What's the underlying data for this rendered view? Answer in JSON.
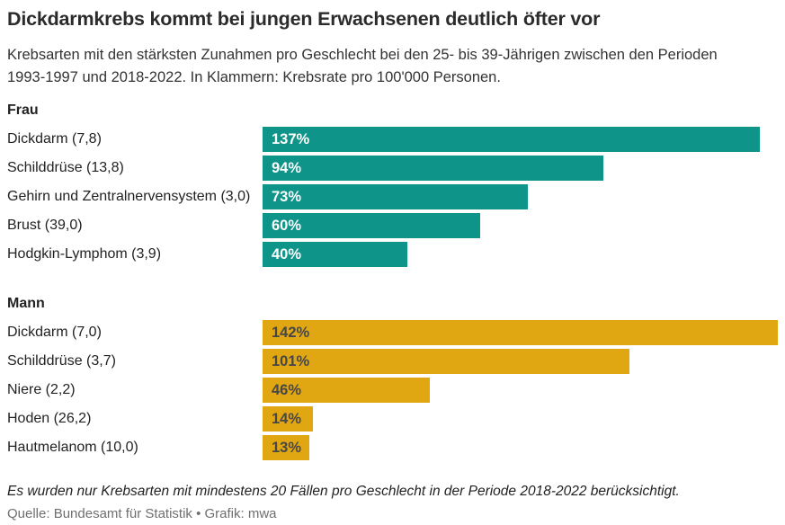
{
  "header": {
    "title": "Dickdarmkrebs kommt bei jungen Erwachsenen deutlich öfter vor",
    "subtitle": "Krebsarten mit den stärksten Zunahmen pro Geschlecht bei den 25- bis 39-Jährigen zwischen den Perioden 1993-1997 und 2018-2022. In Klammern: Krebsrate pro 100'000 Personen."
  },
  "chart_data": {
    "type": "bar",
    "orientation": "horizontal",
    "unit": "%",
    "value_axis_max": 142,
    "grid": false,
    "legend": "none",
    "colors": {
      "frau": "#0f9489",
      "mann": "#e0a712"
    },
    "groups": [
      {
        "name": "Frau",
        "bar_color": "#0f9489",
        "value_text_color": "#ffffff",
        "bars": [
          {
            "label": "Dickdarm (7,8)",
            "value": 137,
            "value_label": "137%"
          },
          {
            "label": "Schilddrüse (13,8)",
            "value": 94,
            "value_label": "94%"
          },
          {
            "label": "Gehirn und Zentralnervensystem (3,0)",
            "value": 73,
            "value_label": "73%"
          },
          {
            "label": "Brust (39,0)",
            "value": 60,
            "value_label": "60%"
          },
          {
            "label": "Hodgkin-Lymphom (3,9)",
            "value": 40,
            "value_label": "40%"
          }
        ]
      },
      {
        "name": "Mann",
        "bar_color": "#e0a712",
        "value_text_color": "#474747",
        "bars": [
          {
            "label": "Dickdarm (7,0)",
            "value": 142,
            "value_label": "142%"
          },
          {
            "label": "Schilddrüse (3,7)",
            "value": 101,
            "value_label": "101%"
          },
          {
            "label": "Niere (2,2)",
            "value": 46,
            "value_label": "46%"
          },
          {
            "label": "Hoden (26,2)",
            "value": 14,
            "value_label": "14%"
          },
          {
            "label": "Hautmelanom (10,0)",
            "value": 13,
            "value_label": "13%"
          }
        ]
      }
    ]
  },
  "footer": {
    "note": "Es wurden nur Krebsarten mit mindestens 20 Fällen pro Geschlecht in der Periode 2018-2022 berücksichtigt.",
    "source": "Quelle: Bundesamt für Statistik • Grafik: mwa"
  }
}
